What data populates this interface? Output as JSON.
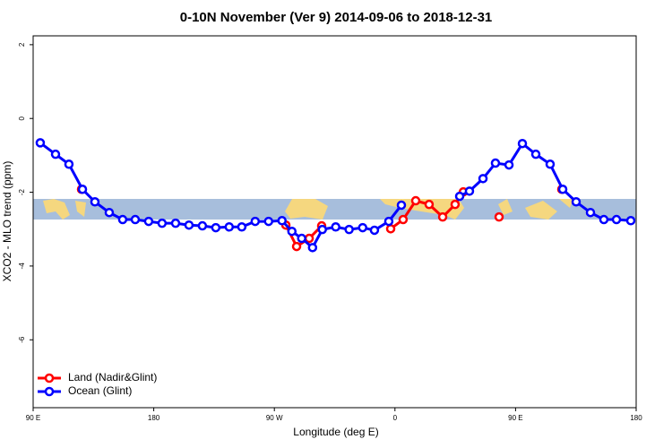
{
  "chart_data": {
    "type": "line",
    "title": "0-10N November (Ver 9)   2014-09-06 to 2018-12-31",
    "x_label": "Longitude (deg E)",
    "y_label": "XCO2 - MLO trend (ppm)",
    "xlim": [
      90,
      540
    ],
    "xticks": [
      {
        "value": 90,
        "label": "90 E"
      },
      180,
      {
        "value": 270,
        "label": "90 W"
      },
      {
        "value": 360,
        "label": "0"
      },
      {
        "value": 450,
        "label": "90 E"
      },
      {
        "value": 540,
        "label": "180"
      }
    ],
    "ylim": [
      -7.84,
      2.24
    ],
    "yticks": [
      2,
      0,
      -2,
      -4,
      -6
    ],
    "legend": "bottom-left",
    "series": [
      {
        "name": "Land (Nadir&Glint)",
        "color": "#ff0000",
        "x": [
          126.1,
          200,
          278.6,
          286.6,
          296.0,
          305.3,
          330,
          356.8,
          366.1,
          375.5,
          385.5,
          395.6,
          404.9,
          411.0,
          425,
          437.7,
          460,
          484.5
        ],
        "values": [
          -1.92,
          null,
          -2.89,
          -3.47,
          -3.25,
          -2.91,
          null,
          -2.99,
          -2.74,
          -2.23,
          -2.33,
          -2.67,
          -2.33,
          -1.99,
          null,
          -2.67,
          null,
          -1.92
        ]
      },
      {
        "name": "Ocean (Glint)",
        "color": "#0000ff",
        "x": [
          95.3,
          106.7,
          116.7,
          126.8,
          136.1,
          146.8,
          156.8,
          166.2,
          176.2,
          186.2,
          196.3,
          206.3,
          216.3,
          226.3,
          236.3,
          245.7,
          255.7,
          265.7,
          275.7,
          283.1,
          290.4,
          298.5,
          305.8,
          315.8,
          325.8,
          335.9,
          344.7,
          355.4,
          364.8,
          385,
          408.3,
          415.6,
          425.7,
          435.0,
          445.1,
          455.1,
          465.1,
          475.8,
          485.2,
          495.2,
          505.9,
          515.9,
          525.3,
          536.0
        ],
        "values": [
          -0.66,
          -0.97,
          -1.24,
          -1.92,
          -2.26,
          -2.55,
          -2.74,
          -2.74,
          -2.79,
          -2.84,
          -2.84,
          -2.89,
          -2.91,
          -2.96,
          -2.94,
          -2.94,
          -2.79,
          -2.79,
          -2.77,
          -3.06,
          -3.25,
          -3.5,
          -3.01,
          -2.94,
          -3.01,
          -2.96,
          -3.03,
          -2.79,
          -2.35,
          null,
          -2.11,
          -1.97,
          -1.63,
          -1.21,
          -1.26,
          -0.68,
          -0.97,
          -1.24,
          -1.92,
          -2.26,
          -2.55,
          -2.74,
          -2.74,
          -2.77
        ]
      }
    ]
  }
}
